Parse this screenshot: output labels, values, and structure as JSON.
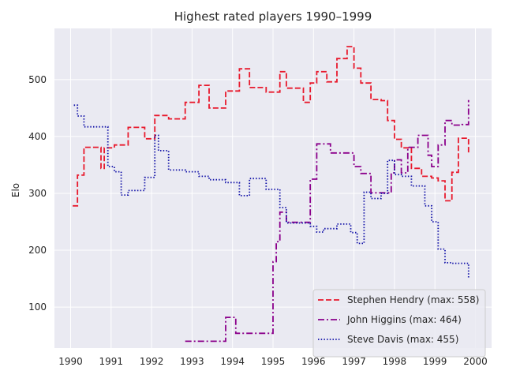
{
  "chart_data": {
    "type": "line",
    "step": true,
    "title": "Highest rated players 1990–1999",
    "xlabel": "",
    "ylabel": "Elo",
    "xlim": [
      1989.6,
      2000.4
    ],
    "ylim": [
      28,
      590
    ],
    "x_ticks": [
      1990,
      1991,
      1992,
      1993,
      1994,
      1995,
      1996,
      1997,
      1998,
      1999,
      2000
    ],
    "x_tick_labels": [
      "1990",
      "1991",
      "1992",
      "1993",
      "1994",
      "1995",
      "1996",
      "1997",
      "1998",
      "1999",
      "2000"
    ],
    "y_ticks": [
      100,
      200,
      300,
      400,
      500
    ],
    "y_tick_labels": [
      "100",
      "200",
      "300",
      "400",
      "500"
    ],
    "grid": true,
    "legend_position": "lower-right",
    "background": "#EAEAF2",
    "series": [
      {
        "name": "Stephen Hendry (max: 558)",
        "color": "#E8192C",
        "dash": "dashed",
        "x": [
          1990.05,
          1990.17,
          1990.33,
          1990.75,
          1990.83,
          1991.08,
          1991.42,
          1991.83,
          1992.08,
          1992.42,
          1992.83,
          1993.17,
          1993.42,
          1993.83,
          1994.17,
          1994.42,
          1994.83,
          1995.17,
          1995.33,
          1995.75,
          1995.92,
          1996.08,
          1996.33,
          1996.58,
          1996.83,
          1997.0,
          1997.17,
          1997.42,
          1997.67,
          1997.83,
          1998.0,
          1998.17,
          1998.42,
          1998.67,
          1998.92,
          1999.08,
          1999.25,
          1999.42,
          1999.58,
          1999.83
        ],
        "y": [
          278,
          332,
          381,
          344,
          380,
          385,
          416,
          396,
          437,
          431,
          460,
          490,
          450,
          480,
          519,
          486,
          478,
          514,
          485,
          460,
          494,
          514,
          496,
          537,
          558,
          520,
          494,
          465,
          463,
          428,
          395,
          380,
          344,
          330,
          327,
          322,
          287,
          337,
          397,
          370
        ]
      },
      {
        "name": "John Higgins (max: 464)",
        "color": "#8B008B",
        "dash": "dashdot",
        "x": [
          1992.83,
          1993.25,
          1993.75,
          1993.83,
          1994.08,
          1994.42,
          1994.83,
          1995.0,
          1995.08,
          1995.17,
          1995.33,
          1995.75,
          1995.92,
          1996.08,
          1996.42,
          1996.83,
          1997.0,
          1997.17,
          1997.42,
          1997.58,
          1997.75,
          1997.92,
          1998.0,
          1998.17,
          1998.33,
          1998.58,
          1998.83,
          1998.92,
          1999.08,
          1999.25,
          1999.42,
          1999.67,
          1999.83
        ],
        "y": [
          40,
          40,
          40,
          82,
          54,
          54,
          54,
          180,
          215,
          267,
          249,
          249,
          325,
          387,
          371,
          371,
          347,
          335,
          301,
          301,
          301,
          336,
          359,
          336,
          381,
          402,
          367,
          347,
          385,
          428,
          420,
          421,
          464
        ]
      },
      {
        "name": "Steve Davis (max: 455)",
        "color": "#1212A8",
        "dash": "dotted",
        "x": [
          1990.08,
          1990.17,
          1990.33,
          1990.75,
          1990.92,
          1991.08,
          1991.25,
          1991.42,
          1991.83,
          1992.08,
          1992.17,
          1992.42,
          1992.83,
          1993.17,
          1993.42,
          1993.83,
          1994.17,
          1994.42,
          1994.83,
          1995.17,
          1995.33,
          1995.75,
          1995.92,
          1996.08,
          1996.25,
          1996.58,
          1996.83,
          1996.92,
          1997.08,
          1997.25,
          1997.42,
          1997.67,
          1997.83,
          1998.0,
          1998.17,
          1998.42,
          1998.75,
          1998.92,
          1999.08,
          1999.25,
          1999.42,
          1999.83
        ],
        "y": [
          455,
          436,
          417,
          417,
          347,
          338,
          297,
          305,
          328,
          402,
          375,
          341,
          338,
          330,
          324,
          319,
          296,
          326,
          307,
          275,
          248,
          248,
          242,
          232,
          238,
          246,
          246,
          231,
          212,
          302,
          291,
          300,
          358,
          333,
          330,
          313,
          278,
          250,
          202,
          178,
          177,
          150
        ]
      }
    ]
  }
}
